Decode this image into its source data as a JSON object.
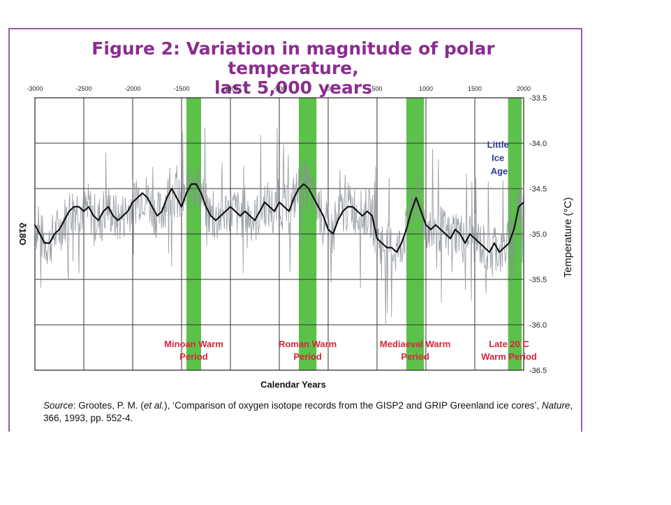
{
  "chart_data": {
    "type": "line",
    "title": "Figure 2: Variation in magnitude of polar temperature, last 5,000 years",
    "xlabel": "Calendar Years",
    "ylabel_right": "Temperature (°C)",
    "ylabel_left": "δ18O",
    "xlim": [
      -3000,
      2000
    ],
    "ylim": [
      -36.5,
      -33.5
    ],
    "x_ticks": [
      "-3000",
      "-2500",
      "-2000",
      "-1500",
      "-1000",
      "-500",
      "0",
      "500",
      "1000",
      "1500",
      "2000"
    ],
    "y_ticks": [
      "-33.5",
      "-34.0",
      "-34.5",
      "-35.0",
      "-35.5",
      "-36.0",
      "-36.5"
    ],
    "grid": true,
    "warm_periods": [
      {
        "label": "Minoan Warm Period",
        "line1": "Minoan Warm",
        "line2": "Period",
        "start": -1450,
        "end": -1300
      },
      {
        "label": "Roman Warm Period",
        "line1": "Roman Warm",
        "line2": "Period",
        "start": -300,
        "end": -120
      },
      {
        "label": "Mediaeval Warm Period",
        "line1": "Mediaeval Warm",
        "line2": "Period",
        "start": 800,
        "end": 980
      },
      {
        "label": "Late 20 C Warm Period",
        "line1": "Late 20 C",
        "line2": "Warm Period",
        "start": 1840,
        "end": 1980
      }
    ],
    "annotation": {
      "line1": "Little",
      "line2": "Ice",
      "line3": "Age",
      "x": 1750,
      "y": -34.05
    },
    "series": [
      {
        "x": [
          -3000,
          -2950,
          -2900,
          -2850,
          -2800,
          -2750,
          -2700,
          -2650,
          -2600,
          -2550,
          -2500,
          -2450,
          -2400,
          -2350,
          -2300,
          -2250,
          -2200,
          -2150,
          -2100,
          -2050,
          -2000,
          -1950,
          -1900,
          -1850,
          -1800,
          -1750,
          -1700,
          -1650,
          -1600,
          -1550,
          -1500,
          -1450,
          -1400,
          -1350,
          -1300,
          -1250,
          -1200,
          -1150,
          -1100,
          -1050,
          -1000,
          -950,
          -900,
          -850,
          -800,
          -750,
          -700,
          -650,
          -600,
          -550,
          -500,
          -450,
          -400,
          -350,
          -300,
          -250,
          -200,
          -150,
          -100,
          -50,
          0,
          50,
          100,
          150,
          200,
          250,
          300,
          350,
          400,
          450,
          500,
          550,
          600,
          650,
          700,
          750,
          800,
          850,
          900,
          950,
          1000,
          1050,
          1100,
          1150,
          1200,
          1250,
          1300,
          1350,
          1400,
          1450,
          1500,
          1550,
          1600,
          1650,
          1700,
          1750,
          1800,
          1850,
          1900,
          1950,
          2000
        ],
        "y": [
          -34.9,
          -35.0,
          -35.1,
          -35.1,
          -35.0,
          -34.95,
          -34.85,
          -34.75,
          -34.7,
          -34.7,
          -34.75,
          -34.7,
          -34.8,
          -34.85,
          -34.75,
          -34.7,
          -34.8,
          -34.85,
          -34.8,
          -34.75,
          -34.65,
          -34.6,
          -34.55,
          -34.6,
          -34.7,
          -34.8,
          -34.75,
          -34.6,
          -34.5,
          -34.6,
          -34.7,
          -34.55,
          -34.45,
          -34.45,
          -34.55,
          -34.7,
          -34.8,
          -34.85,
          -34.8,
          -34.75,
          -34.7,
          -34.75,
          -34.8,
          -34.75,
          -34.8,
          -34.85,
          -34.75,
          -34.65,
          -34.7,
          -34.75,
          -34.65,
          -34.7,
          -34.75,
          -34.6,
          -34.5,
          -34.45,
          -34.5,
          -34.6,
          -34.7,
          -34.8,
          -34.95,
          -35.0,
          -34.85,
          -34.75,
          -34.7,
          -34.7,
          -34.75,
          -34.8,
          -34.75,
          -34.8,
          -35.05,
          -35.1,
          -35.15,
          -35.15,
          -35.2,
          -35.1,
          -34.95,
          -34.75,
          -34.6,
          -34.75,
          -34.9,
          -34.95,
          -34.9,
          -34.95,
          -35.0,
          -35.05,
          -34.95,
          -35.0,
          -35.1,
          -35.0,
          -35.05,
          -35.1,
          -35.15,
          -35.2,
          -35.1,
          -35.2,
          -35.15,
          -35.1,
          -34.95,
          -34.7,
          -34.65
        ]
      }
    ]
  },
  "header": {
    "title_line1": "Figure 2: Variation in magnitude of polar temperature,",
    "title_line2": "last 5,000 years"
  },
  "source": {
    "label": "Source",
    "text_a": ": Grootes, P. M. (",
    "et_al": "et al.",
    "text_b": "), ‘Comparison of oxygen isotope records from the GISP2 and GRIP Greenland ice cores’, ",
    "journal": "Nature",
    "text_c": ", 366, 1993, pp. 552-4."
  },
  "colors": {
    "frame": "#9a5aa8",
    "title": "#8a2d8f",
    "warm_band": "#5cc14a",
    "period_label": "#d8243c",
    "lia_label": "#2b3a8f",
    "raw_series": "#8a8f98",
    "smoothed_series": "#111111"
  }
}
